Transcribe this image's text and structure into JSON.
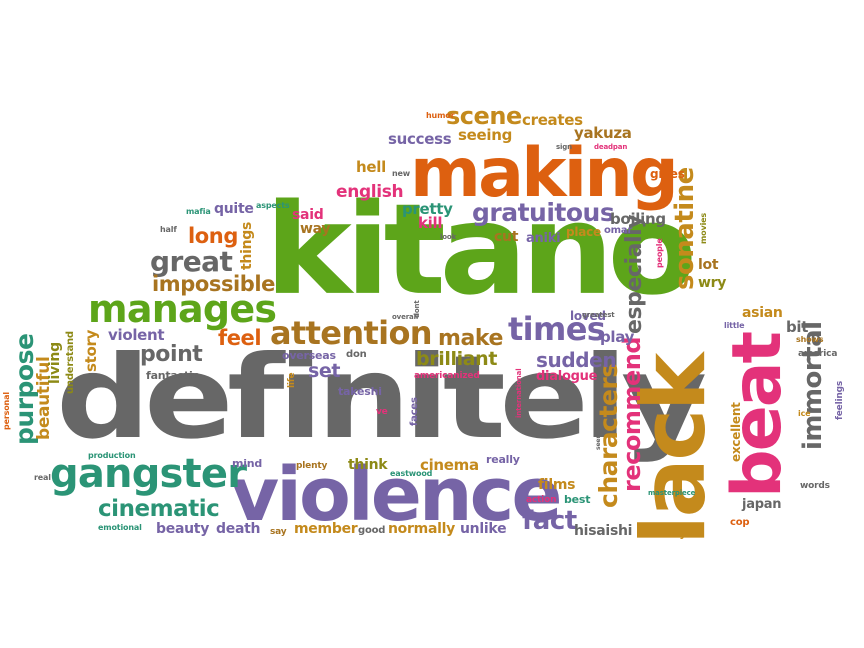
{
  "palette": {
    "green": "#5da51a",
    "orange": "#dd6010",
    "gray": "#676767",
    "purple": "#7664a6",
    "pink": "#e3327a",
    "gold": "#c48a1c",
    "teal": "#2b9476",
    "brown": "#a87420",
    "olive": "#8d8a16"
  },
  "words": [
    {
      "t": "definitely",
      "c": "gray",
      "s": 1
    },
    {
      "t": "kitano",
      "c": "green",
      "s": 1
    },
    {
      "t": "lack",
      "c": "gold",
      "s": 1
    },
    {
      "t": "violence",
      "c": "purple",
      "s": 1
    },
    {
      "t": "making",
      "c": "orange",
      "s": 1
    },
    {
      "t": "beat",
      "c": "pink",
      "s": 1
    },
    {
      "t": "gangster",
      "c": "teal",
      "s": 1
    },
    {
      "t": "manages",
      "c": "green",
      "s": 1
    },
    {
      "t": "attention",
      "c": "brown",
      "s": 1
    },
    {
      "t": "times",
      "c": "purple",
      "s": 1
    },
    {
      "t": "gratuitous",
      "c": "purple",
      "s": 1
    },
    {
      "t": "scene",
      "c": "gold",
      "s": 1
    },
    {
      "t": "sonatine",
      "c": "gold",
      "s": 1
    },
    {
      "t": "immortal",
      "c": "gray",
      "s": 1
    },
    {
      "t": "characters",
      "c": "gold",
      "s": 1
    },
    {
      "t": "recommend",
      "c": "pink",
      "s": 1
    },
    {
      "t": "especially",
      "c": "gray",
      "s": 1
    },
    {
      "t": "great",
      "c": "gray",
      "s": 1
    },
    {
      "t": "impossible",
      "c": "brown",
      "s": 1
    },
    {
      "t": "cinematic",
      "c": "teal",
      "s": 1
    },
    {
      "t": "purpose",
      "c": "teal",
      "s": 1
    },
    {
      "t": "fact",
      "c": "purple",
      "s": 1
    },
    {
      "t": "make",
      "c": "brown",
      "s": 1
    },
    {
      "t": "feel",
      "c": "orange",
      "s": 1
    },
    {
      "t": "point",
      "c": "gray",
      "s": 1
    },
    {
      "t": "brilliant",
      "c": "olive",
      "s": 1
    },
    {
      "t": "sudden",
      "c": "purple",
      "s": 1
    },
    {
      "t": "long",
      "c": "orange",
      "s": 1
    },
    {
      "t": "beautiful",
      "c": "gold",
      "s": 1
    },
    {
      "t": "english",
      "c": "pink",
      "s": 1
    },
    {
      "t": "success",
      "c": "purple",
      "s": 1
    },
    {
      "t": "seeing",
      "c": "gold",
      "s": 1
    },
    {
      "t": "creates",
      "c": "gold",
      "s": 1
    },
    {
      "t": "yakuza",
      "c": "brown",
      "s": 1
    },
    {
      "t": "hell",
      "c": "gold",
      "s": 1
    },
    {
      "t": "pretty",
      "c": "teal",
      "s": 1
    },
    {
      "t": "kill",
      "c": "pink",
      "s": 1
    },
    {
      "t": "boiling",
      "c": "gray",
      "s": 1
    },
    {
      "t": "gives",
      "c": "orange",
      "s": 1
    },
    {
      "t": "quite",
      "c": "purple",
      "s": 1
    },
    {
      "t": "things",
      "c": "gold",
      "s": 1
    },
    {
      "t": "said",
      "c": "pink",
      "s": 1
    },
    {
      "t": "way",
      "c": "brown",
      "s": 1
    },
    {
      "t": "cut",
      "c": "brown",
      "s": 1
    },
    {
      "t": "aniki",
      "c": "purple",
      "s": 1
    },
    {
      "t": "place",
      "c": "gold",
      "s": 1
    },
    {
      "t": "omar",
      "c": "purple",
      "s": 1
    },
    {
      "t": "lot",
      "c": "brown",
      "s": 1
    },
    {
      "t": "wry",
      "c": "olive",
      "s": 1
    },
    {
      "t": "asian",
      "c": "gold",
      "s": 1
    },
    {
      "t": "bit",
      "c": "gray",
      "s": 1
    },
    {
      "t": "loved",
      "c": "purple",
      "s": 1
    },
    {
      "t": "play",
      "c": "purple",
      "s": 1
    },
    {
      "t": "violent",
      "c": "purple",
      "s": 1
    },
    {
      "t": "story",
      "c": "gold",
      "s": 1
    },
    {
      "t": "living",
      "c": "olive",
      "s": 1
    },
    {
      "t": "understand",
      "c": "olive",
      "s": 1
    },
    {
      "t": "set",
      "c": "purple",
      "s": 1
    },
    {
      "t": "fantastic",
      "c": "gray",
      "s": 1
    },
    {
      "t": "takeshi",
      "c": "purple",
      "s": 1
    },
    {
      "t": "overseas",
      "c": "purple",
      "s": 1
    },
    {
      "t": "don",
      "c": "gray",
      "s": 1
    },
    {
      "t": "dialogue",
      "c": "pink",
      "s": 1
    },
    {
      "t": "americanized",
      "c": "pink",
      "s": 1
    },
    {
      "t": "excellent",
      "c": "gold",
      "s": 1
    },
    {
      "t": "japan",
      "c": "gray",
      "s": 1
    },
    {
      "t": "america",
      "c": "gray",
      "s": 1
    },
    {
      "t": "shows",
      "c": "brown",
      "s": 1
    },
    {
      "t": "little",
      "c": "purple",
      "s": 1
    },
    {
      "t": "feelings",
      "c": "purple",
      "s": 1
    },
    {
      "t": "words",
      "c": "gray",
      "s": 1
    },
    {
      "t": "cop",
      "c": "orange",
      "s": 1
    },
    {
      "t": "style",
      "c": "gold",
      "s": 1
    },
    {
      "t": "hisaishi",
      "c": "gray",
      "s": 1
    },
    {
      "t": "unlike",
      "c": "purple",
      "s": 1
    },
    {
      "t": "normally",
      "c": "gold",
      "s": 1
    },
    {
      "t": "good",
      "c": "gray",
      "s": 1
    },
    {
      "t": "member",
      "c": "gold",
      "s": 1
    },
    {
      "t": "say",
      "c": "brown",
      "s": 1
    },
    {
      "t": "death",
      "c": "purple",
      "s": 1
    },
    {
      "t": "beauty",
      "c": "purple",
      "s": 1
    },
    {
      "t": "emotional",
      "c": "teal",
      "s": 1
    },
    {
      "t": "mind",
      "c": "purple",
      "s": 1
    },
    {
      "t": "think",
      "c": "olive",
      "s": 1
    },
    {
      "t": "cinema",
      "c": "gold",
      "s": 1
    },
    {
      "t": "really",
      "c": "purple",
      "s": 1
    },
    {
      "t": "plenty",
      "c": "brown",
      "s": 1
    },
    {
      "t": "eastwood",
      "c": "teal",
      "s": 1
    },
    {
      "t": "films",
      "c": "gold",
      "s": 1
    },
    {
      "t": "action",
      "c": "pink",
      "s": 1
    },
    {
      "t": "best",
      "c": "teal",
      "s": 1
    },
    {
      "t": "masterpiece",
      "c": "teal",
      "s": 1
    },
    {
      "t": "faces",
      "c": "purple",
      "s": 1
    },
    {
      "t": "international",
      "c": "pink",
      "s": 1
    },
    {
      "t": "ve",
      "c": "pink",
      "s": 1
    },
    {
      "t": "life",
      "c": "gold",
      "s": 1
    },
    {
      "t": "personal",
      "c": "orange",
      "s": 1
    },
    {
      "t": "production",
      "c": "teal",
      "s": 1
    },
    {
      "t": "real",
      "c": "gray",
      "s": 1
    },
    {
      "t": "half",
      "c": "gray",
      "s": 1
    },
    {
      "t": "mafia",
      "c": "teal",
      "s": 1
    },
    {
      "t": "aspects",
      "c": "teal",
      "s": 1
    },
    {
      "t": "look",
      "c": "gray",
      "s": 1
    },
    {
      "t": "humor",
      "c": "orange",
      "s": 1
    },
    {
      "t": "new",
      "c": "gray",
      "s": 1
    },
    {
      "t": "sign",
      "c": "gray",
      "s": 1
    },
    {
      "t": "deadpan",
      "c": "pink",
      "s": 1
    },
    {
      "t": "people",
      "c": "pink",
      "s": 1
    },
    {
      "t": "movies",
      "c": "olive",
      "s": 1
    },
    {
      "t": "dont",
      "c": "gray",
      "s": 1
    },
    {
      "t": "overall",
      "c": "gray",
      "s": 1
    },
    {
      "t": "greatest",
      "c": "gray",
      "s": 1
    },
    {
      "t": "seen",
      "c": "gray",
      "s": 1
    },
    {
      "t": "ice",
      "c": "gold",
      "s": 1
    }
  ]
}
